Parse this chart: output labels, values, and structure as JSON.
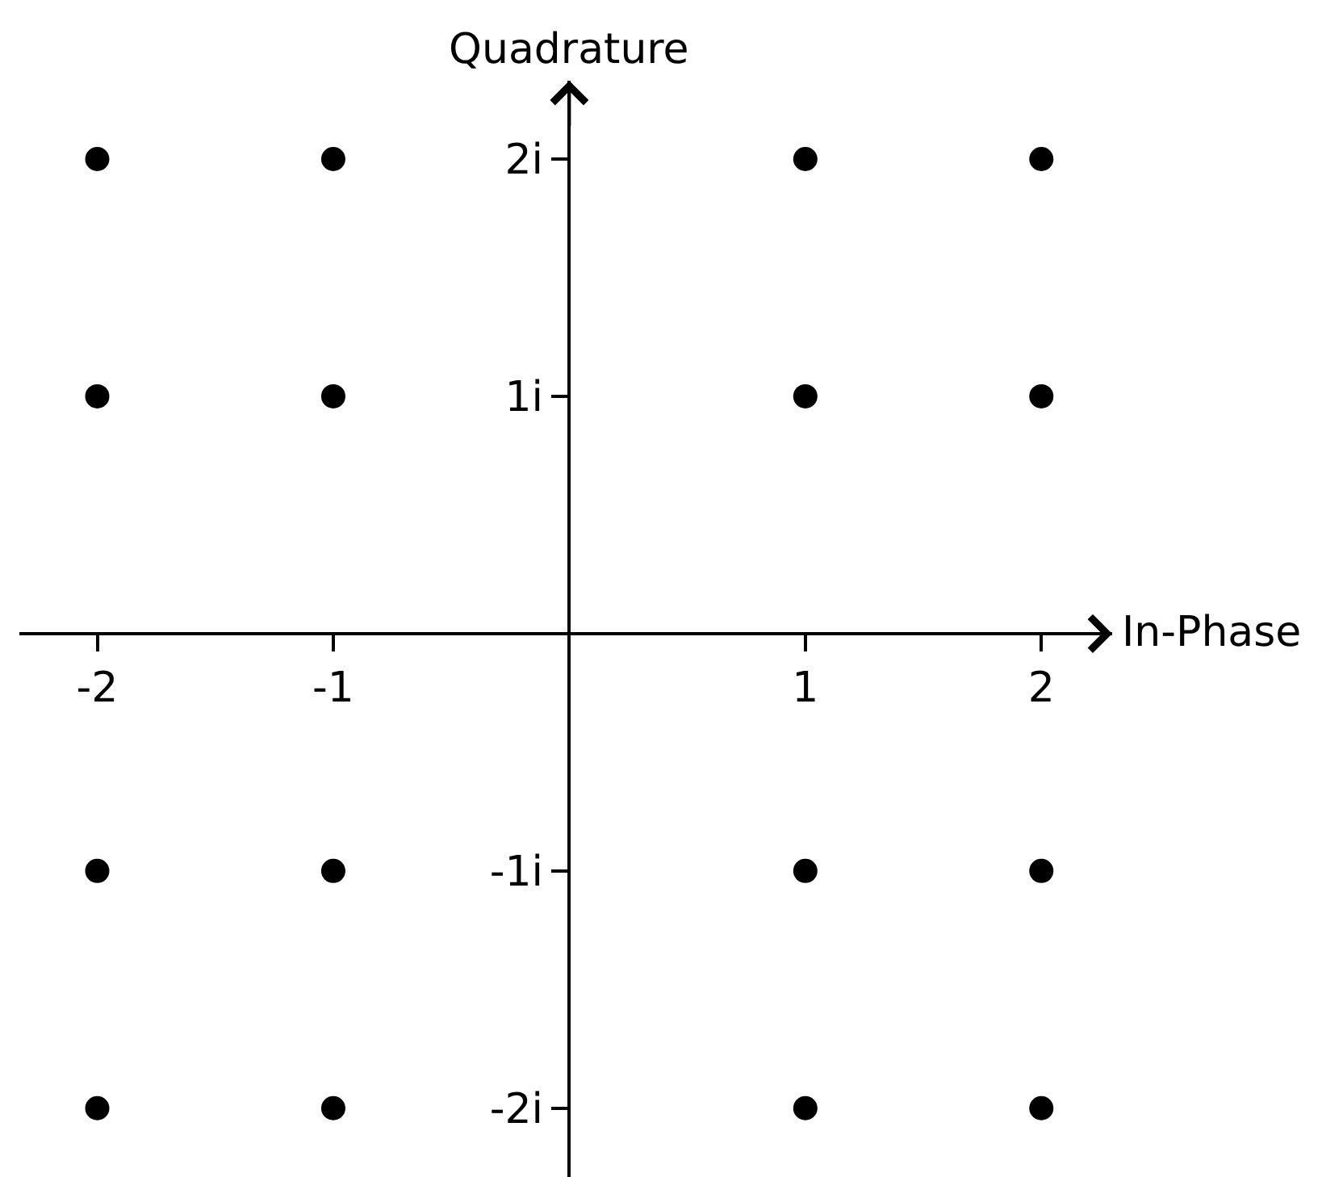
{
  "chart_data": {
    "type": "scatter",
    "xlabel": "In-Phase",
    "ylabel": "Quadrature",
    "x": [
      -2,
      -1,
      1,
      2,
      -2,
      -1,
      1,
      2,
      -2,
      -1,
      1,
      2,
      -2,
      -1,
      1,
      2
    ],
    "series": [
      {
        "color": "#000000",
        "values": [
          2,
          2,
          2,
          2,
          1,
          1,
          1,
          1,
          -1,
          -1,
          -1,
          -1,
          -2,
          -2,
          -2,
          -2
        ]
      }
    ],
    "xlim": [
      -2.33,
      2.3
    ],
    "ylim": [
      -2.29,
      2.33
    ],
    "xticks": [
      -2,
      -1,
      1,
      2
    ],
    "yticks": [
      {
        "value": 2,
        "label": "2i"
      },
      {
        "value": 1,
        "label": "1i"
      },
      {
        "value": -1,
        "label": "-1i"
      },
      {
        "value": -2,
        "label": "-2i"
      }
    ],
    "marker": "circle",
    "grid": false
  }
}
